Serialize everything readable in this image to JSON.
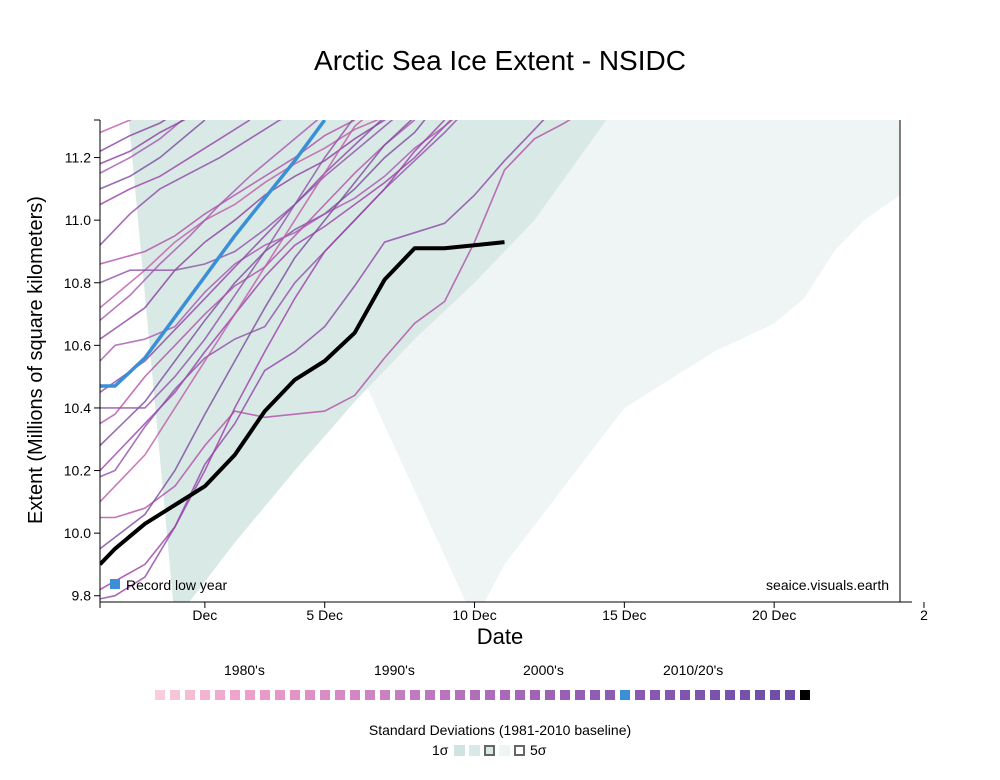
{
  "chart_data": {
    "type": "line",
    "title": "Arctic Sea Ice Extent - NSIDC",
    "xlabel": "Date",
    "ylabel": "Extent (Millions of square kilometers)",
    "x_tick_labels": [
      "Dec",
      "5 Dec",
      "10 Dec",
      "15 Dec",
      "20 Dec",
      "2"
    ],
    "y_ticks": [
      9.8,
      10.0,
      10.2,
      10.4,
      10.6,
      10.8,
      11.0,
      11.2
    ],
    "xlim_day": [
      -2.5,
      24.2
    ],
    "ylim": [
      9.78,
      11.32
    ],
    "grid": false,
    "source_note": "seaice.visuals.earth",
    "record_label": "Record low year",
    "colors": {
      "current": "#000000",
      "record": "#3a8fd6",
      "band1": "#d8e9e6",
      "band2": "#eef5f4",
      "history": "#9b3fa8"
    },
    "band_1sigma": {
      "lower": [
        [
          0,
          9.72
        ],
        [
          2,
          9.97
        ],
        [
          4,
          10.2
        ],
        [
          6,
          10.42
        ],
        [
          8,
          10.62
        ],
        [
          10,
          10.8
        ],
        [
          12,
          11.0
        ],
        [
          13.5,
          11.2
        ],
        [
          15,
          11.4
        ]
      ],
      "upper": [
        [
          -2.5,
          11.5
        ],
        [
          15,
          11.5
        ]
      ]
    },
    "band_5sigma": {
      "lower": [
        [
          10,
          9.72
        ],
        [
          11,
          9.9
        ],
        [
          13,
          10.15
        ],
        [
          15,
          10.4
        ],
        [
          17,
          10.52
        ],
        [
          18,
          10.58
        ],
        [
          20,
          10.67
        ],
        [
          21,
          10.75
        ],
        [
          22,
          10.9
        ],
        [
          23,
          11.0
        ],
        [
          24.2,
          11.08
        ]
      ],
      "upper": [
        [
          -2.5,
          11.5
        ],
        [
          24.2,
          11.5
        ]
      ]
    },
    "series": [
      {
        "name": "",
        "role": "current",
        "points": [
          [
            -2.5,
            9.9
          ],
          [
            -2,
            9.95
          ],
          [
            -1,
            10.03
          ],
          [
            0,
            10.09
          ],
          [
            1,
            10.15
          ],
          [
            2,
            10.25
          ],
          [
            3,
            10.39
          ],
          [
            4,
            10.49
          ],
          [
            5,
            10.55
          ],
          [
            6,
            10.64
          ],
          [
            7,
            10.81
          ],
          [
            8,
            10.91
          ],
          [
            9,
            10.91
          ],
          [
            10,
            10.92
          ],
          [
            11,
            10.93
          ]
        ]
      },
      {
        "name": "Record low year",
        "role": "record",
        "points": [
          [
            -2.5,
            10.47
          ],
          [
            -2,
            10.47
          ],
          [
            -1,
            10.56
          ],
          [
            0,
            10.69
          ],
          [
            1,
            10.82
          ],
          [
            2,
            10.95
          ],
          [
            3,
            11.07
          ],
          [
            4,
            11.19
          ],
          [
            5,
            11.32
          ]
        ]
      }
    ],
    "history_series": [
      [
        [
          -2.5,
          10.05
        ],
        [
          -2,
          10.05
        ],
        [
          -1,
          10.08
        ],
        [
          0,
          10.15
        ],
        [
          1,
          10.28
        ],
        [
          2,
          10.39
        ],
        [
          3,
          10.37
        ],
        [
          4,
          10.38
        ],
        [
          5,
          10.39
        ],
        [
          6,
          10.44
        ],
        [
          7,
          10.56
        ],
        [
          8,
          10.67
        ],
        [
          9,
          10.74
        ],
        [
          10,
          10.93
        ],
        [
          11,
          11.16
        ],
        [
          12,
          11.26
        ],
        [
          13,
          11.31
        ],
        [
          13.5,
          11.34
        ]
      ],
      [
        [
          -2.5,
          9.79
        ],
        [
          -2,
          9.8
        ],
        [
          -1,
          9.86
        ],
        [
          0,
          10.02
        ],
        [
          1,
          10.22
        ],
        [
          2,
          10.35
        ],
        [
          3,
          10.52
        ],
        [
          4,
          10.58
        ],
        [
          5,
          10.66
        ],
        [
          6,
          10.79
        ],
        [
          7,
          10.93
        ],
        [
          8,
          10.96
        ],
        [
          9,
          10.99
        ],
        [
          10,
          11.08
        ],
        [
          11,
          11.19
        ],
        [
          12,
          11.29
        ],
        [
          12.5,
          11.34
        ]
      ],
      [
        [
          -2.5,
          10.2
        ],
        [
          -1,
          10.35
        ],
        [
          0,
          10.45
        ],
        [
          1,
          10.58
        ],
        [
          2,
          10.7
        ],
        [
          3,
          10.82
        ],
        [
          4,
          10.92
        ],
        [
          5,
          10.98
        ],
        [
          6,
          11.05
        ],
        [
          7,
          11.12
        ],
        [
          8,
          11.2
        ],
        [
          9,
          11.3
        ],
        [
          9.5,
          11.35
        ]
      ],
      [
        [
          -2.5,
          10.28
        ],
        [
          -1,
          10.42
        ],
        [
          0,
          10.55
        ],
        [
          1,
          10.68
        ],
        [
          2,
          10.8
        ],
        [
          3,
          10.9
        ],
        [
          4,
          10.97
        ],
        [
          5,
          11.02
        ],
        [
          6,
          11.1
        ],
        [
          7,
          11.2
        ],
        [
          8,
          11.28
        ],
        [
          8.5,
          11.34
        ]
      ],
      [
        [
          -2.5,
          10.55
        ],
        [
          -2,
          10.6
        ],
        [
          -1,
          10.62
        ],
        [
          0,
          10.66
        ],
        [
          1,
          10.77
        ],
        [
          2,
          10.86
        ],
        [
          3,
          10.92
        ],
        [
          4,
          10.96
        ],
        [
          5,
          11.02
        ],
        [
          6,
          11.07
        ],
        [
          7,
          11.14
        ],
        [
          8,
          11.23
        ],
        [
          9,
          11.3
        ],
        [
          9.5,
          11.34
        ]
      ],
      [
        [
          -2.5,
          10.62
        ],
        [
          -1,
          10.72
        ],
        [
          0,
          10.84
        ],
        [
          1,
          10.93
        ],
        [
          2,
          11.0
        ],
        [
          3,
          11.08
        ],
        [
          4,
          11.14
        ],
        [
          5,
          11.19
        ],
        [
          6,
          11.26
        ],
        [
          7,
          11.32
        ],
        [
          7.5,
          11.35
        ]
      ],
      [
        [
          -2.5,
          10.72
        ],
        [
          -1,
          10.84
        ],
        [
          0,
          10.93
        ],
        [
          1,
          11.0
        ],
        [
          2,
          11.05
        ],
        [
          3,
          11.12
        ],
        [
          4,
          11.18
        ],
        [
          5,
          11.23
        ],
        [
          6,
          11.29
        ],
        [
          7,
          11.33
        ]
      ],
      [
        [
          -2.5,
          10.8
        ],
        [
          -1.5,
          10.84
        ],
        [
          0,
          10.84
        ],
        [
          1,
          10.86
        ],
        [
          2,
          10.9
        ],
        [
          3,
          10.97
        ],
        [
          4,
          11.05
        ],
        [
          5,
          11.14
        ],
        [
          6,
          11.22
        ],
        [
          7,
          11.3
        ],
        [
          7.5,
          11.34
        ]
      ],
      [
        [
          -2.5,
          10.86
        ],
        [
          -1,
          10.9
        ],
        [
          0,
          10.95
        ],
        [
          1,
          11.02
        ],
        [
          2,
          11.08
        ],
        [
          3,
          11.14
        ],
        [
          4,
          11.2
        ],
        [
          5,
          11.27
        ],
        [
          6,
          11.32
        ]
      ],
      [
        [
          -2.5,
          10.92
        ],
        [
          -1.5,
          11.02
        ],
        [
          -0.5,
          11.1
        ],
        [
          0.5,
          11.15
        ],
        [
          1.5,
          11.2
        ],
        [
          2.5,
          11.26
        ],
        [
          3.5,
          11.32
        ],
        [
          4,
          11.34
        ]
      ],
      [
        [
          -2.5,
          11.05
        ],
        [
          -1.5,
          11.1
        ],
        [
          -0.5,
          11.14
        ],
        [
          0.5,
          11.2
        ],
        [
          1.5,
          11.26
        ],
        [
          2.5,
          11.32
        ]
      ],
      [
        [
          -2.5,
          11.1
        ],
        [
          -1.5,
          11.14
        ],
        [
          -0.5,
          11.2
        ],
        [
          0.5,
          11.28
        ],
        [
          1,
          11.32
        ]
      ],
      [
        [
          -2.5,
          11.15
        ],
        [
          -1.5,
          11.2
        ],
        [
          -0.5,
          11.26
        ],
        [
          0,
          11.3
        ],
        [
          0.5,
          11.34
        ]
      ],
      [
        [
          -2.5,
          11.22
        ],
        [
          -1.5,
          11.27
        ],
        [
          -0.5,
          11.31
        ],
        [
          0,
          11.34
        ]
      ],
      [
        [
          -2.5,
          11.28
        ],
        [
          -1.5,
          11.32
        ],
        [
          -1,
          11.34
        ]
      ],
      [
        [
          -2.5,
          10.18
        ],
        [
          -2,
          10.2
        ],
        [
          -1,
          10.34
        ],
        [
          0,
          10.46
        ],
        [
          1,
          10.56
        ],
        [
          2,
          10.62
        ],
        [
          3,
          10.66
        ],
        [
          4,
          10.8
        ],
        [
          5,
          10.9
        ],
        [
          6,
          11.0
        ],
        [
          7,
          11.1
        ],
        [
          8,
          11.19
        ],
        [
          9,
          11.28
        ],
        [
          9.5,
          11.33
        ]
      ],
      [
        [
          -2.5,
          10.35
        ],
        [
          -2,
          10.38
        ],
        [
          -1,
          10.5
        ],
        [
          0,
          10.6
        ],
        [
          1,
          10.7
        ],
        [
          2,
          10.79
        ],
        [
          3,
          10.85
        ],
        [
          4,
          10.95
        ],
        [
          5,
          11.05
        ],
        [
          6,
          11.15
        ],
        [
          7,
          11.24
        ],
        [
          8,
          11.32
        ]
      ],
      [
        [
          -2.5,
          10.45
        ],
        [
          -1,
          10.55
        ],
        [
          0,
          10.65
        ],
        [
          1,
          10.75
        ],
        [
          2,
          10.85
        ],
        [
          3,
          10.95
        ],
        [
          4,
          11.05
        ],
        [
          5,
          11.15
        ],
        [
          6,
          11.24
        ],
        [
          7,
          11.33
        ]
      ],
      [
        [
          -2.5,
          9.82
        ],
        [
          -1,
          9.9
        ],
        [
          0,
          10.02
        ],
        [
          1,
          10.2
        ],
        [
          2,
          10.4
        ],
        [
          3,
          10.58
        ],
        [
          4,
          10.75
        ],
        [
          5,
          10.9
        ],
        [
          6,
          11.0
        ],
        [
          7,
          11.1
        ],
        [
          8,
          11.22
        ],
        [
          9,
          11.32
        ]
      ],
      [
        [
          -2.5,
          9.95
        ],
        [
          -1,
          10.06
        ],
        [
          0,
          10.2
        ],
        [
          1,
          10.38
        ],
        [
          2,
          10.55
        ],
        [
          3,
          10.72
        ],
        [
          4,
          10.88
        ],
        [
          5,
          11.0
        ],
        [
          6,
          11.12
        ],
        [
          7,
          11.24
        ],
        [
          8,
          11.33
        ]
      ],
      [
        [
          -2.5,
          10.68
        ],
        [
          -1.5,
          10.76
        ],
        [
          -0.5,
          10.86
        ],
        [
          0.5,
          10.95
        ],
        [
          1.5,
          11.05
        ],
        [
          2.5,
          11.14
        ],
        [
          3.5,
          11.22
        ],
        [
          4.5,
          11.3
        ],
        [
          5,
          11.34
        ]
      ],
      [
        [
          -2.5,
          11.18
        ],
        [
          -1.5,
          11.22
        ],
        [
          -0.5,
          11.28
        ],
        [
          0.5,
          11.33
        ]
      ],
      [
        [
          -2.5,
          10.1
        ],
        [
          -1,
          10.25
        ],
        [
          0,
          10.4
        ],
        [
          1,
          10.55
        ],
        [
          2,
          10.7
        ],
        [
          3,
          10.85
        ],
        [
          4,
          11.0
        ],
        [
          5,
          11.15
        ],
        [
          6,
          11.3
        ],
        [
          6.5,
          11.34
        ]
      ],
      [
        [
          -2.5,
          10.4
        ],
        [
          -1,
          10.4
        ],
        [
          0,
          10.5
        ],
        [
          1,
          10.62
        ],
        [
          2,
          10.76
        ],
        [
          3,
          10.9
        ],
        [
          4,
          11.05
        ],
        [
          5,
          11.2
        ],
        [
          6,
          11.33
        ]
      ]
    ]
  },
  "legend": {
    "title": "",
    "decade_labels": [
      "1980's",
      "1990's",
      "2000's",
      "2010/20's"
    ],
    "year_colors": [
      "#f8cedd",
      "#f6c5d8",
      "#f4bdd4",
      "#f2b4d0",
      "#f0acce",
      "#eea4cb",
      "#eca0c9",
      "#e99bc8",
      "#e697c8",
      "#e294c7",
      "#de90c6",
      "#da8cc5",
      "#d689c4",
      "#d286c3",
      "#ce83c2",
      "#ca80c1",
      "#c57dc0",
      "#c17abf",
      "#bd77be",
      "#b974bd",
      "#b571bc",
      "#b16ebb",
      "#ad6bba",
      "#a968b9",
      "#a565b8",
      "#a163b7",
      "#9d61b6",
      "#995fb5",
      "#955eb4",
      "#915cb3",
      "#8e5bb2",
      "#3a8fd6",
      "#8a5ab2",
      "#8758b1",
      "#8457b0",
      "#8155af",
      "#7e54ae",
      "#7b53ad",
      "#7852ac",
      "#7551ab",
      "#7250aa",
      "#6f4fa9",
      "#6c4ea8",
      "#000000"
    ],
    "sd_title": "Standard Deviations (1981-2010 baseline)",
    "sd_low": "1σ",
    "sd_high": "5σ",
    "sd_colors": [
      "#cfe3e0",
      "#d9e9e7",
      "#eef5f4"
    ]
  }
}
